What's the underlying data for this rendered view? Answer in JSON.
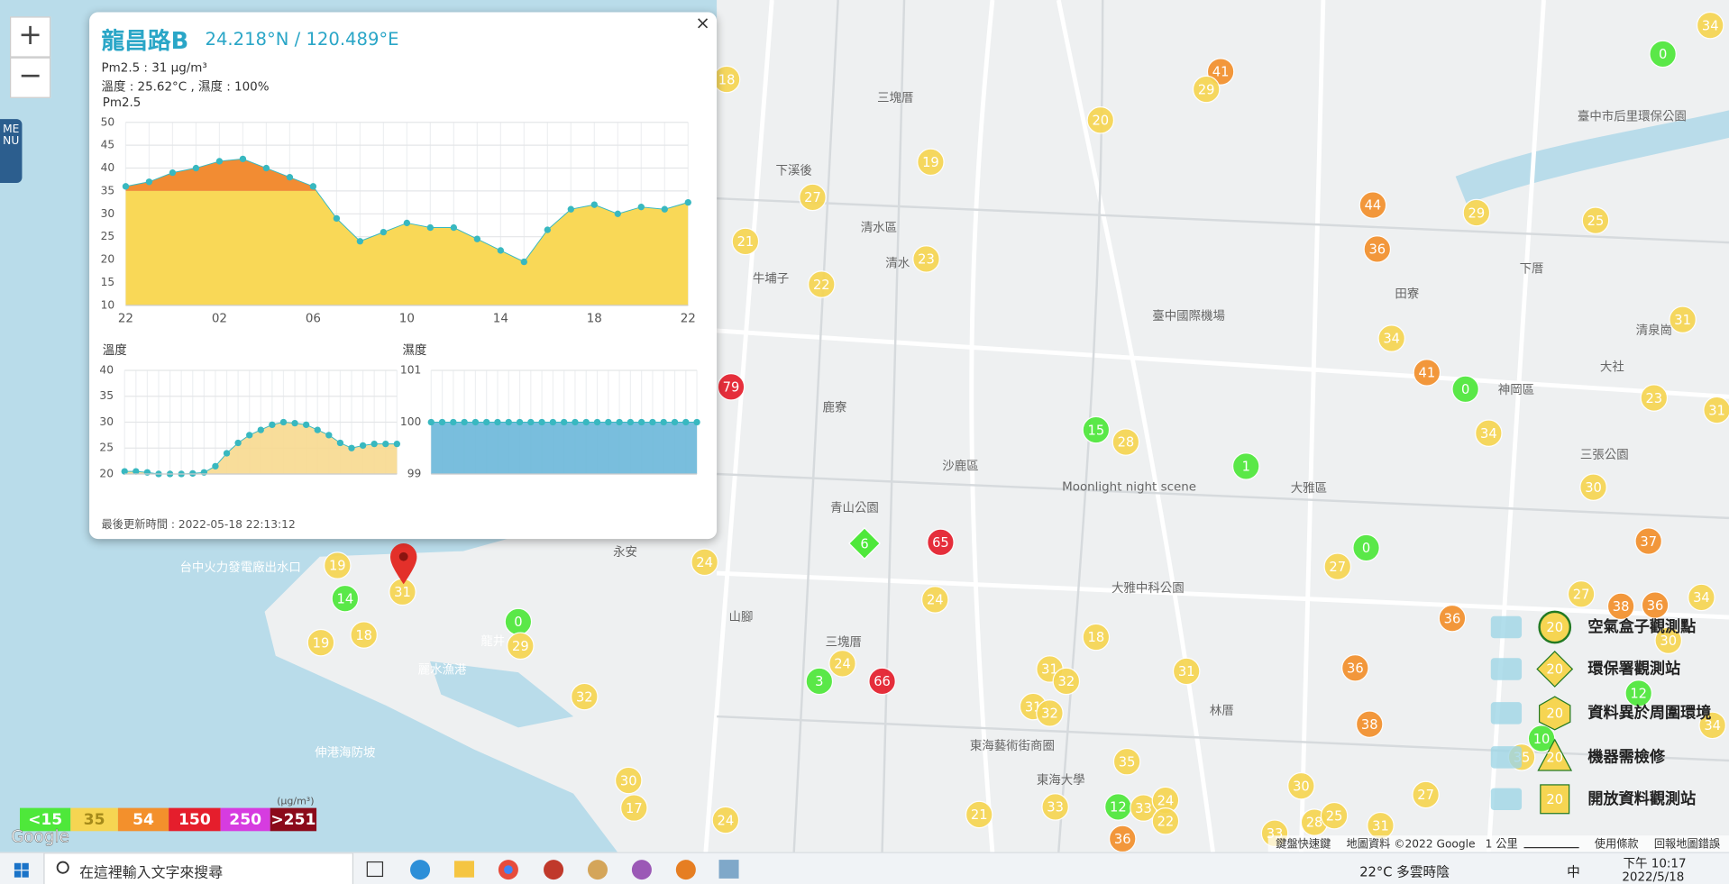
{
  "popup": {
    "title": "龍昌路B",
    "coordinates": "24.218°N / 120.489°E",
    "close": "×",
    "pm_line": "Pm2.5 : 31 μg/m³",
    "env_line": "溫度 : 25.62°C , 濕度 : 100%",
    "updated": "最後更新時間 : 2022-05-18 22:13:12"
  },
  "chart_data": [
    {
      "type": "area",
      "title": "Pm2.5",
      "categories": [
        "22",
        null,
        null,
        null,
        "02",
        null,
        null,
        null,
        "06",
        null,
        null,
        null,
        "10",
        null,
        null,
        null,
        "14",
        null,
        null,
        null,
        "18",
        null,
        null,
        null,
        "22"
      ],
      "values": [
        36,
        37,
        39,
        40,
        41.5,
        42,
        40,
        38,
        36,
        29,
        24,
        26,
        28,
        27,
        27,
        24.5,
        22,
        19.5,
        26.5,
        31,
        32,
        30,
        31.5,
        31,
        32.5
      ],
      "ylim": [
        10,
        50
      ],
      "yticks": [
        10,
        15,
        20,
        25,
        30,
        35,
        40,
        45,
        50
      ],
      "color": "#38b8c0",
      "fill": [
        "#f9d857",
        "#f28c33"
      ],
      "grid": true
    },
    {
      "type": "area",
      "title": "溫度",
      "values": [
        20.5,
        20.5,
        20.3,
        20,
        20,
        20,
        20.1,
        20.3,
        21.5,
        24,
        26,
        27.5,
        28.5,
        29.5,
        30,
        29.8,
        29.5,
        28.5,
        27.5,
        26,
        25,
        25.5,
        25.8,
        25.8,
        25.8
      ],
      "ylim": [
        20,
        40
      ],
      "yticks": [
        20,
        25,
        30,
        35,
        40
      ],
      "color": "#38b8c0",
      "fill": [
        "#f7d98f"
      ],
      "grid": true
    },
    {
      "type": "area",
      "title": "濕度",
      "values": [
        100,
        100,
        100,
        100,
        100,
        100,
        100,
        100,
        100,
        100,
        100,
        100,
        100,
        100,
        100,
        100,
        100,
        100,
        100,
        100,
        100,
        100,
        100,
        100,
        100
      ],
      "ylim": [
        99,
        101
      ],
      "yticks": [
        99,
        100,
        101
      ],
      "color": "#38b8c0",
      "fill": [
        "#6ab7d9"
      ],
      "grid": true
    }
  ],
  "color_scale": {
    "unit": "(μg/m³)",
    "levels": [
      {
        "value": 15,
        "label": "<15"
      },
      35,
      54,
      150,
      250,
      {
        "value": 251,
        "label": ">251"
      }
    ],
    "colors": [
      "#4ee83a",
      "#f6d552",
      "#f3902c",
      "#e51e2c",
      "#d63ce0",
      "#8b0a1a"
    ]
  },
  "map": {
    "zoom_in": "+",
    "zoom_out": "−",
    "menu": "MENU",
    "markers": [
      18,
      41,
      29,
      0,
      34,
      20,
      19,
      27,
      21,
      23,
      22,
      44,
      29,
      25,
      36,
      34,
      31,
      41,
      0,
      23,
      34,
      31,
      79,
      15,
      28,
      1,
      30,
      65,
      0,
      37,
      27,
      24,
      24,
      19,
      14,
      31,
      19,
      18,
      0,
      29,
      27,
      38,
      36,
      34,
      36,
      30,
      18,
      24,
      3,
      66,
      31,
      32,
      31,
      36,
      32,
      31,
      32,
      38,
      35,
      12,
      34,
      10,
      35,
      30,
      17,
      24,
      21,
      33,
      12,
      33,
      24,
      22,
      30,
      27,
      28,
      25,
      31,
      36,
      33
    ],
    "epa_marker": 6,
    "labels": [
      "三塊厝",
      "下溪後",
      "清水區",
      "牛埔子",
      "清水",
      "鹿寮",
      "沙鹿區",
      "三塊厝",
      "田寮",
      "神岡區",
      "大社",
      "臺中國際機場",
      "龍井",
      "永安",
      "山腳",
      "林厝",
      "下厝",
      "三張公園",
      "東海藝術街商圈",
      "東海大學",
      "麗水漁港",
      "台中火力發電廠出水口",
      "伸港海防坡",
      "臺中市后里環保公園",
      "Moonlight night scene",
      "大雅區",
      "大雅中科公園",
      "青山公園",
      "清泉崗"
    ],
    "attribution": {
      "logo": "Google",
      "shortcuts": "鍵盤快速鍵",
      "data": "地圖資料 ©2022 Google",
      "scale": "1 公里",
      "terms": "使用條款",
      "report": "回報地圖錯誤"
    }
  },
  "legend": {
    "items": [
      {
        "sample": 20,
        "label": "空氣盒子觀測點"
      },
      {
        "sample": 20,
        "label": "環保署觀測站"
      },
      {
        "sample": 20,
        "label": "資料異於周圍環境"
      },
      {
        "sample": 20,
        "label": "機器需檢修"
      },
      {
        "sample": 20,
        "label": "開放資料觀測站"
      }
    ]
  },
  "taskbar": {
    "search": "在這裡輸入文字來搜尋",
    "weather": "22°C 多雲時陰",
    "ime": "中",
    "time": "下午 10:17",
    "date": "2022/5/18"
  }
}
